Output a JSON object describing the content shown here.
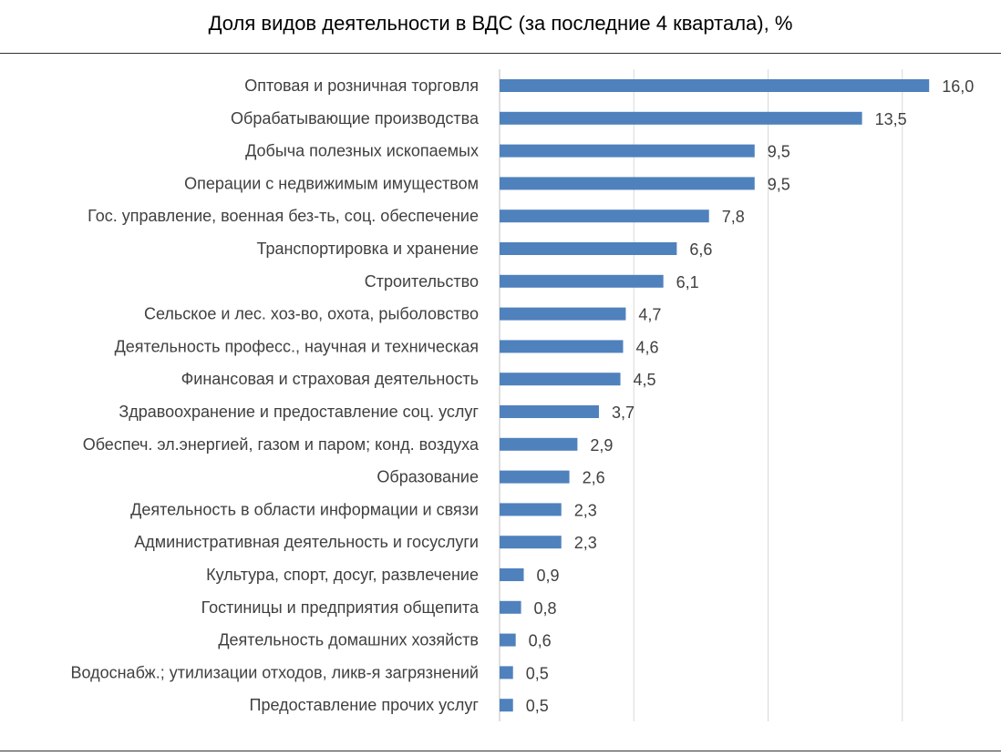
{
  "chart_data": {
    "type": "bar",
    "orientation": "horizontal",
    "title": "Доля видов деятельности в ВДС (за последние 4 квартала), %",
    "xlim": [
      0,
      16.5
    ],
    "gridlines": [
      0,
      5,
      10,
      15
    ],
    "grid": true,
    "color": "#4f81bd",
    "categories": [
      "Оптовая и розничная торговля",
      "Обрабатывающие производства",
      "Добыча полезных ископаемых",
      "Операции с недвижимым имуществом",
      "Гос. управление, военная без-ть,  соц. обеспечение",
      "Транспортировка и хранение",
      "Строительство",
      "Сельское и лес. хоз-во, охота, рыболовство",
      "Деятельность професс., научная и техническая",
      "Финансовая и страховая деятельность",
      "Здравоохранение и предоставление соц. услуг",
      "Обеспеч. эл.энергией, газом и паром; конд. воздуха",
      "Образование",
      "Деятельность в области информации и связи",
      "Административная деятельность и госуслуги",
      "Культура, спорт, досуг, развлечение",
      "Гостиницы и предприятия общепита",
      "Деятельность домашних хозяйств",
      "Водоснабж.; утилизации отходов, ликв-я загрязнений",
      "Предоставление прочих услуг"
    ],
    "values": [
      16.0,
      13.5,
      9.5,
      9.5,
      7.8,
      6.6,
      6.1,
      4.7,
      4.6,
      4.5,
      3.7,
      2.9,
      2.6,
      2.3,
      2.3,
      0.9,
      0.8,
      0.6,
      0.5,
      0.5
    ],
    "value_labels": [
      "16,0",
      "13,5",
      "9,5",
      "9,5",
      "7,8",
      "6,6",
      "6,1",
      "4,7",
      "4,6",
      "4,5",
      "3,7",
      "2,9",
      "2,6",
      "2,3",
      "2,3",
      "0,9",
      "0,8",
      "0,6",
      "0,5",
      "0,5"
    ]
  }
}
